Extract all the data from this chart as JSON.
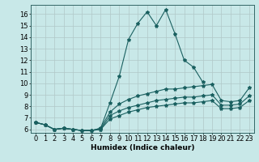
{
  "title": "",
  "xlabel": "Humidex (Indice chaleur)",
  "xlim": [
    -0.5,
    23.5
  ],
  "ylim": [
    5.7,
    16.8
  ],
  "yticks": [
    6,
    7,
    8,
    9,
    10,
    11,
    12,
    13,
    14,
    15,
    16
  ],
  "xticks": [
    0,
    1,
    2,
    3,
    4,
    5,
    6,
    7,
    8,
    9,
    10,
    11,
    12,
    13,
    14,
    15,
    16,
    17,
    18,
    19,
    20,
    21,
    22,
    23
  ],
  "bg_color": "#c8e8e8",
  "grid_color": "#b0c8c8",
  "line_color": "#1a6060",
  "lines": [
    {
      "x": [
        0,
        1,
        2,
        3,
        4,
        5,
        6,
        7,
        8,
        9,
        10,
        11,
        12,
        13,
        14,
        15,
        16,
        17,
        18
      ],
      "y": [
        6.6,
        6.4,
        6.0,
        6.1,
        6.0,
        5.9,
        5.9,
        6.1,
        8.3,
        10.6,
        13.8,
        15.2,
        16.2,
        15.0,
        16.4,
        14.3,
        12.0,
        11.4,
        10.1
      ]
    },
    {
      "x": [
        0,
        1,
        2,
        3,
        4,
        5,
        6,
        7,
        8,
        9,
        10,
        11,
        12,
        13,
        14,
        15,
        16,
        17,
        18,
        19,
        20,
        21,
        22,
        23
      ],
      "y": [
        6.6,
        6.4,
        6.0,
        6.1,
        6.0,
        5.9,
        5.9,
        6.1,
        7.5,
        8.2,
        8.6,
        8.9,
        9.1,
        9.3,
        9.5,
        9.5,
        9.6,
        9.7,
        9.8,
        9.9,
        8.5,
        8.4,
        8.5,
        9.6
      ]
    },
    {
      "x": [
        0,
        1,
        2,
        3,
        4,
        5,
        6,
        7,
        8,
        9,
        10,
        11,
        12,
        13,
        14,
        15,
        16,
        17,
        18,
        19,
        20,
        21,
        22,
        23
      ],
      "y": [
        6.6,
        6.4,
        6.0,
        6.1,
        6.0,
        5.9,
        5.9,
        6.0,
        7.2,
        7.6,
        7.9,
        8.1,
        8.3,
        8.5,
        8.6,
        8.7,
        8.8,
        8.8,
        8.9,
        9.0,
        8.1,
        8.1,
        8.2,
        8.9
      ]
    },
    {
      "x": [
        0,
        1,
        2,
        3,
        4,
        5,
        6,
        7,
        8,
        9,
        10,
        11,
        12,
        13,
        14,
        15,
        16,
        17,
        18,
        19,
        20,
        21,
        22,
        23
      ],
      "y": [
        6.6,
        6.4,
        6.0,
        6.1,
        6.0,
        5.9,
        5.9,
        6.0,
        6.9,
        7.2,
        7.5,
        7.7,
        7.9,
        8.0,
        8.1,
        8.2,
        8.3,
        8.3,
        8.4,
        8.5,
        7.8,
        7.8,
        7.9,
        8.5
      ]
    }
  ],
  "marker": "*",
  "markersize": 3.0,
  "linewidth": 0.8,
  "tick_fontsize": 6.0,
  "xlabel_fontsize": 6.5
}
